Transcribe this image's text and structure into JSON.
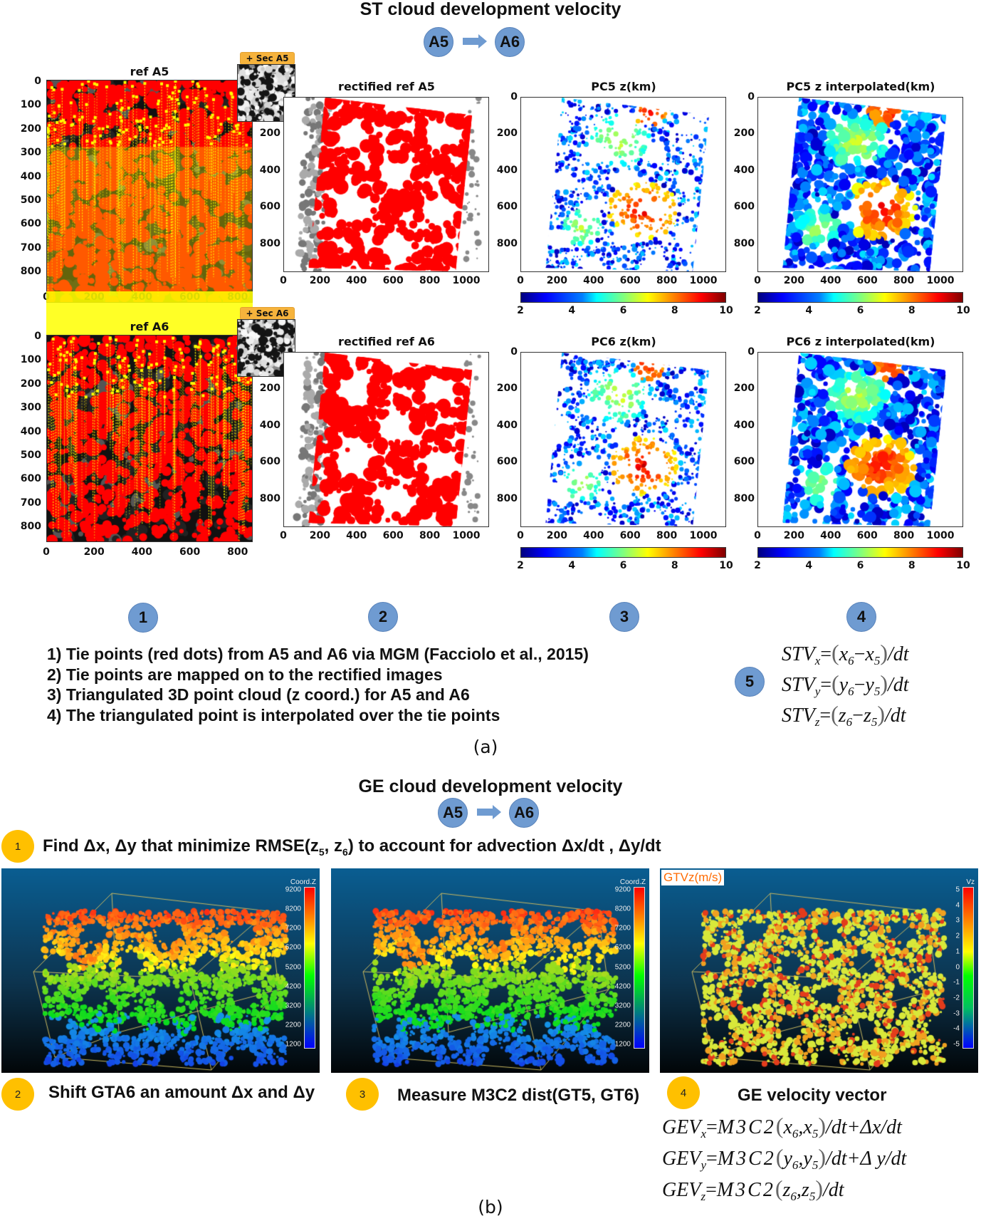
{
  "section_a": {
    "title": "ST cloud development velocity",
    "from": "A5",
    "to": "A6",
    "rows": [
      {
        "ref_title": "ref A5",
        "sec_label": "+ Sec A5",
        "rect_title": "rectified ref A5",
        "pc_title": "PC5 z(km)",
        "interp_title": "PC5 z interpolated(km)"
      },
      {
        "ref_title": "ref A6",
        "sec_label": "+ Sec A6",
        "rect_title": "rectified ref A6",
        "pc_title": "PC6 z(km)",
        "interp_title": "PC6 z interpolated(km)"
      }
    ],
    "axes": {
      "ref_y_ticks": [
        0,
        100,
        200,
        300,
        400,
        500,
        600,
        700,
        800
      ],
      "ref_x_ticks": [
        0,
        200,
        400,
        600,
        800
      ],
      "rect_y_ticks": [
        200,
        400,
        600,
        800
      ],
      "rect_x_ticks": [
        0,
        200,
        400,
        600,
        800,
        1000
      ],
      "pc_y_ticks": [
        0,
        200,
        400,
        600,
        800
      ],
      "pc_x_ticks": [
        0,
        200,
        400,
        600,
        800,
        1000
      ],
      "colorbar_ticks": [
        2,
        4,
        6,
        8,
        10
      ],
      "colorbar_range_km": [
        2,
        10
      ]
    },
    "steps": [
      "1",
      "2",
      "3",
      "4"
    ],
    "notes": [
      "1) Tie points (red dots) from A5 and A6 via MGM (Facciolo et al., 2015)",
      "2) Tie points are mapped on to the rectified images",
      "3) Triangulated 3D point cloud (z coord.) for A5 and A6",
      "4) The triangulated point is interpolated over the tie points"
    ],
    "formula_step": "5",
    "formulas": [
      {
        "lhs": "STV",
        "sub": "x",
        "a": "x",
        "a_sub": "6",
        "op": "−",
        "b": "x",
        "b_sub": "5",
        "tail": "/dt"
      },
      {
        "lhs": "STV",
        "sub": "y",
        "a": "y",
        "a_sub": "6",
        "op": "−",
        "b": "y",
        "b_sub": "5",
        "tail": "/dt"
      },
      {
        "lhs": "STV",
        "sub": "z",
        "a": "z",
        "a_sub": "6",
        "op": "−",
        "b": "z",
        "b_sub": "5",
        "tail": "/dt"
      }
    ],
    "caption": "(a)"
  },
  "section_b": {
    "title": "GE cloud development velocity",
    "from": "A5",
    "to": "A6",
    "step1": {
      "num": "1",
      "pre": "Find Δx, Δy that minimize RMSE(z",
      "s1": "5",
      "mid": ", z",
      "s2": "6",
      "post": ") to account for advection Δx/dt , Δy/dt"
    },
    "panels": [
      {
        "legend_title": "Coord.Z",
        "ticks": [
          "9200",
          "8200",
          "7200",
          "6200",
          "5200",
          "4200",
          "3200",
          "2200",
          "1200"
        ]
      },
      {
        "legend_title": "Coord.Z",
        "ticks": [
          "9200",
          "8200",
          "7200",
          "6200",
          "5200",
          "4200",
          "3200",
          "2200",
          "1200"
        ]
      },
      {
        "legend_title": "Vz",
        "label": "GTVz(m/s)",
        "ticks": [
          "5",
          "4",
          "3",
          "2",
          "1",
          "0",
          "-1",
          "-2",
          "-3",
          "-4",
          "-5"
        ]
      }
    ],
    "steps": [
      {
        "num": "2",
        "text": "Shift GTA6 an amount Δx and Δy"
      },
      {
        "num": "3",
        "text": "Measure M3C2 dist(GT5, GT6)"
      },
      {
        "num": "4",
        "text": "GE velocity vector"
      }
    ],
    "formulas": [
      {
        "lhs": "GEV",
        "sub": "x",
        "fn": "M3C2",
        "a": "x",
        "a_sub": "6",
        "b": "x",
        "b_sub": "5",
        "tail": "/dt",
        "extra": "+Δx/dt"
      },
      {
        "lhs": "GEV",
        "sub": "y",
        "fn": "M3C2",
        "a": "y",
        "a_sub": "6",
        "b": "y",
        "b_sub": "5",
        "tail": "/dt",
        "extra": "+Δ y/dt"
      },
      {
        "lhs": "GEV",
        "sub": "z",
        "fn": "M3C2",
        "a": "z",
        "a_sub": "6",
        "b": "z",
        "b_sub": "5",
        "tail": "/dt",
        "extra": ""
      }
    ],
    "caption": "(b)"
  }
}
